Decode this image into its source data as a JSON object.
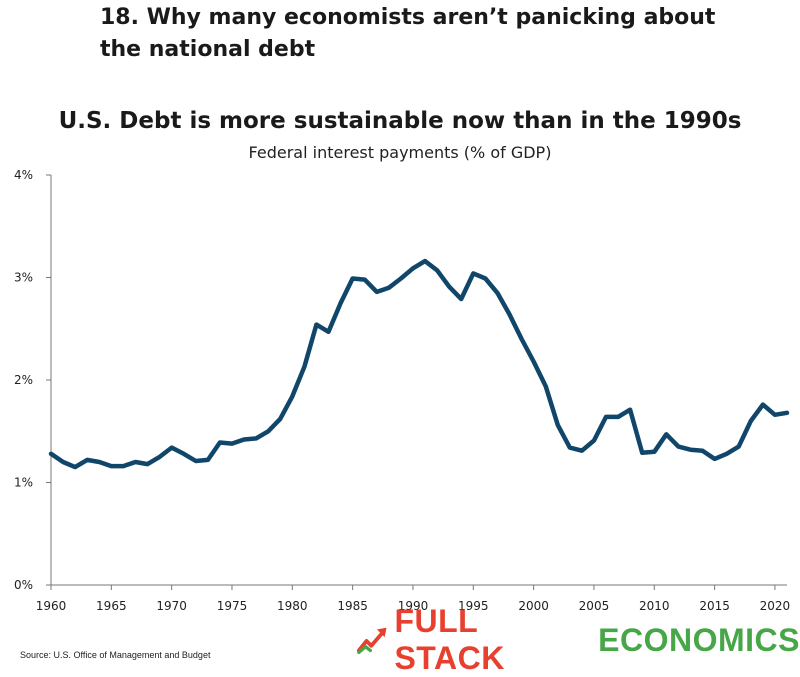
{
  "header": {
    "title": "18. Why many economists aren’t panicking about the national debt"
  },
  "colors": {
    "line": "#11466b",
    "logo_red": "#e8402f",
    "logo_green": "#47a648",
    "axis": "#777777"
  },
  "chart_data": {
    "type": "line",
    "title": "U.S. Debt is more sustainable now than in the 1990s",
    "subtitle": "Federal interest payments (% of GDP)",
    "xlabel": "",
    "ylabel": "",
    "xlim": [
      1960,
      2021
    ],
    "ylim": [
      0,
      4
    ],
    "x_ticks": [
      1960,
      1965,
      1970,
      1975,
      1980,
      1985,
      1990,
      1995,
      2000,
      2005,
      2010,
      2015,
      2020
    ],
    "y_ticks": [
      0,
      1,
      2,
      3,
      4
    ],
    "y_tick_labels": [
      "0%",
      "1%",
      "2%",
      "3%",
      "4%"
    ],
    "grid": false,
    "series": [
      {
        "x": [
          1960,
          1961,
          1962,
          1963,
          1964,
          1965,
          1966,
          1967,
          1968,
          1969,
          1970,
          1971,
          1972,
          1973,
          1974,
          1975,
          1976,
          1977,
          1978,
          1979,
          1980,
          1981,
          1982,
          1983,
          1984,
          1985,
          1986,
          1987,
          1988,
          1989,
          1990,
          1991,
          1992,
          1993,
          1994,
          1995,
          1996,
          1997,
          1998,
          1999,
          2000,
          2001,
          2002,
          2003,
          2004,
          2005,
          2006,
          2007,
          2008,
          2009,
          2010,
          2011,
          2012,
          2013,
          2014,
          2015,
          2016,
          2017,
          2018,
          2019,
          2020,
          2021
        ],
        "values": [
          1.28,
          1.2,
          1.15,
          1.22,
          1.2,
          1.16,
          1.16,
          1.2,
          1.18,
          1.25,
          1.34,
          1.28,
          1.21,
          1.22,
          1.39,
          1.38,
          1.42,
          1.43,
          1.5,
          1.62,
          1.84,
          2.13,
          2.54,
          2.47,
          2.75,
          2.99,
          2.98,
          2.86,
          2.9,
          2.99,
          3.09,
          3.16,
          3.07,
          2.91,
          2.79,
          3.04,
          2.99,
          2.85,
          2.64,
          2.4,
          2.18,
          1.94,
          1.56,
          1.34,
          1.31,
          1.41,
          1.64,
          1.64,
          1.71,
          1.29,
          1.3,
          1.47,
          1.35,
          1.32,
          1.31,
          1.23,
          1.28,
          1.35,
          1.6,
          1.76,
          1.66,
          1.68
        ]
      }
    ]
  },
  "footer": {
    "source": "Source: U.S. Office of Management and Budget",
    "logo_full": "FULL STACK",
    "logo_econ": "ECONOMICS"
  }
}
